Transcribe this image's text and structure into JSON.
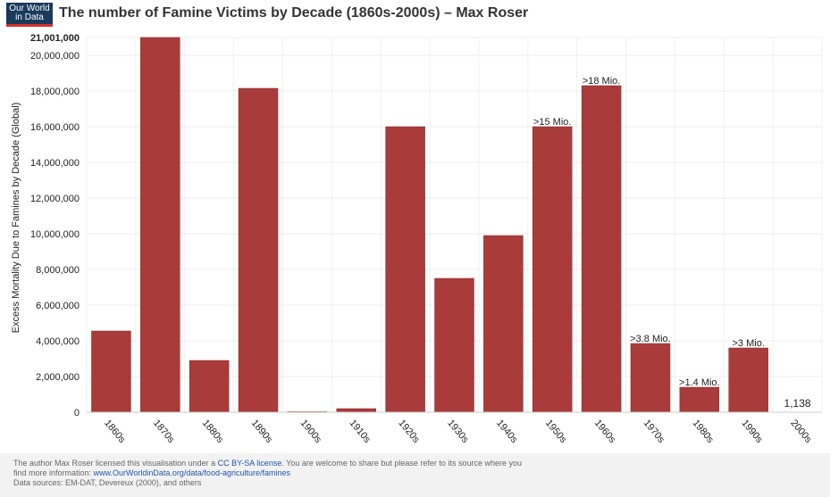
{
  "header": {
    "logo_line1": "Our World",
    "logo_line2": "in Data",
    "title": "The number of Famine Victims by Decade (1860s-2000s) – Max Roser"
  },
  "chart_data": {
    "type": "bar",
    "categories": [
      "1860s",
      "1870s",
      "1880s",
      "1890s",
      "1900s",
      "1910s",
      "1920s",
      "1930s",
      "1940s",
      "1950s",
      "1960s",
      "1970s",
      "1980s",
      "1990s",
      "2000s"
    ],
    "values": [
      4550000,
      21001000,
      2900000,
      18150000,
      30000,
      200000,
      16000000,
      7500000,
      9900000,
      16000000,
      18300000,
      3850000,
      1400000,
      3600000,
      1138
    ],
    "annotations": [
      "",
      "",
      "",
      "",
      "",
      "",
      "",
      "",
      "",
      ">15 Mio.",
      ">18 Mio.",
      ">3.8 Mio.",
      ">1.4 Mio.",
      ">3 Mio.",
      "1,138"
    ],
    "ylabel": "Excess Mortality Due to Famines by Decade (Global)",
    "xlabel": "",
    "ylim": [
      0,
      21001000
    ],
    "ytick_labels": [
      "0",
      "2,000,000",
      "4,000,000",
      "6,000,000",
      "8,000,000",
      "10,000,000",
      "12,000,000",
      "14,000,000",
      "16,000,000",
      "18,000,000",
      "20,000,000",
      "21,001,000"
    ],
    "ytick_values": [
      0,
      2000000,
      4000000,
      6000000,
      8000000,
      10000000,
      12000000,
      14000000,
      16000000,
      18000000,
      20000000,
      21001000
    ],
    "bar_color": "#a93b3b",
    "grid": true
  },
  "footer": {
    "license_pre": "The author Max Roser licensed this visualisation under a ",
    "license_link": "CC BY-SA license",
    "license_post": ". You are welcome to share but please refer to its source where you",
    "info_pre": "find more information: ",
    "info_link": "www.OurWorldinData.org/data/food-agriculture/famines",
    "sources": "Data sources: EM-DAT, Devereux (2000), and others"
  }
}
